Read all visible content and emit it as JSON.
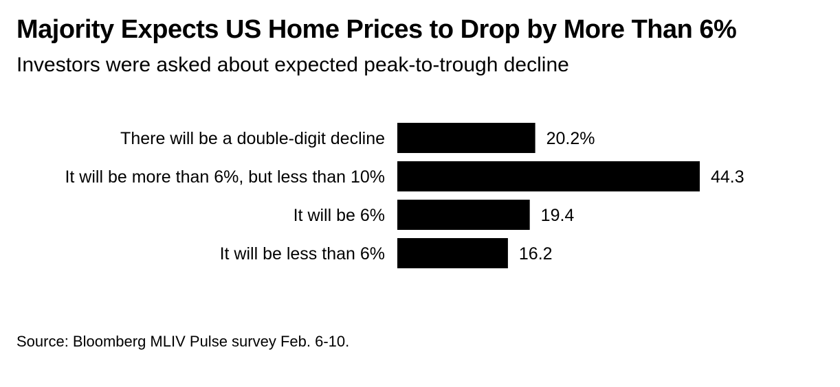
{
  "chart_data": {
    "type": "bar",
    "orientation": "horizontal",
    "title": "Majority Expects US Home Prices to Drop by More Than 6%",
    "subtitle": "Investors were asked about expected peak-to-trough decline",
    "categories": [
      "There will be a double-digit decline",
      "It will be more than 6%, but less than 10%",
      "It will be 6%",
      "It will be less than 6%"
    ],
    "values": [
      20.2,
      44.3,
      19.4,
      16.2
    ],
    "value_labels": [
      "20.2%",
      "44.3",
      "19.4",
      "16.2"
    ],
    "xlim": [
      0,
      44.3
    ],
    "bar_color": "#000000",
    "source": "Source: Bloomberg MLIV Pulse survey Feb. 6-10."
  }
}
